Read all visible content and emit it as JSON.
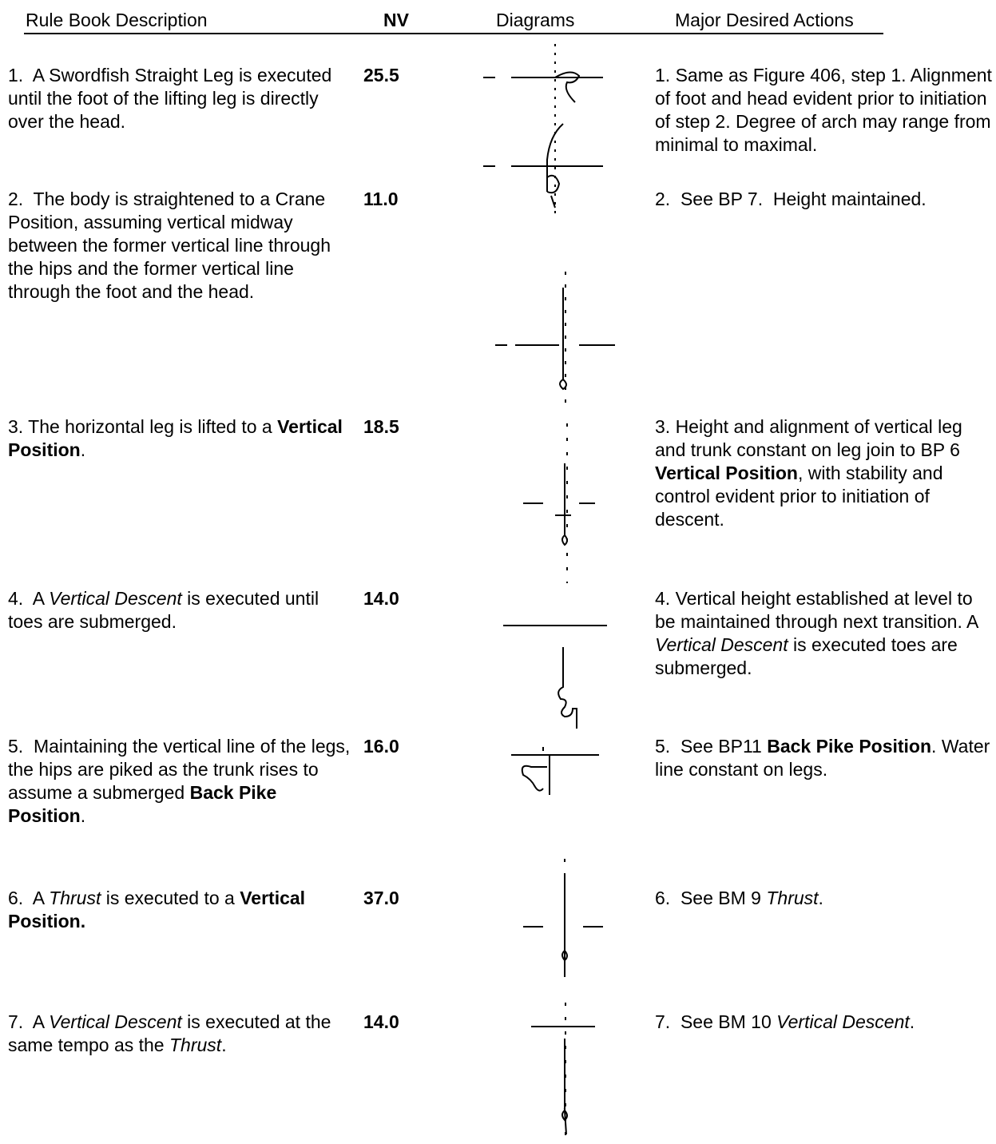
{
  "header": {
    "description": "Rule Book Description",
    "nv": "NV",
    "diagrams": "Diagrams",
    "actions": "Major Desired Actions"
  },
  "rows": [
    {
      "description": [
        "1.  A Swordfish Straight Leg is executed until the foot of the lifting leg is directly over the head."
      ],
      "nv": "25.5",
      "actions": [
        "1. Same as Figure 406, step 1. Alignment of foot and head evident prior to initiation of step 2. Degree of arch may range from minimal to maximal."
      ]
    },
    {
      "description": [
        "2.  The body is straightened to a Crane Position, assuming vertical midway between the former vertical line through the hips and the former vertical line through the foot and the head."
      ],
      "nv": "11.0",
      "actions": [
        "2.  See BP 7.  Height maintained."
      ]
    },
    {
      "description": [
        "3. The horizontal leg is lifted to a ",
        {
          "b": "Vertical Position"
        },
        "."
      ],
      "nv": "18.5",
      "actions": [
        "3. Height and alignment of vertical leg and trunk constant on leg join to BP 6 ",
        {
          "b": "Vertical Position"
        },
        ", with stability and control evident prior to initiation of descent."
      ]
    },
    {
      "description": [
        "4.  A ",
        {
          "i": "Vertical Descent"
        },
        " is executed until toes are submerged."
      ],
      "nv": "14.0",
      "actions": [
        "4. Vertical height established at level to be maintained through next transition. A ",
        {
          "i": "Vertical Descent"
        },
        " is executed toes are submerged."
      ]
    },
    {
      "description": [
        "5.  Maintaining the vertical line of the legs, the hips are piked as the trunk rises to assume a submerged ",
        {
          "b": "Back Pike Position"
        },
        "."
      ],
      "nv": "16.0",
      "actions": [
        "5.  See BP11 ",
        {
          "b": "Back Pike Position"
        },
        ". Water line constant on legs."
      ]
    },
    {
      "description": [
        "6.  A ",
        {
          "i": "Thrust"
        },
        " is executed to a ",
        {
          "b": "Vertical Position."
        }
      ],
      "nv": "37.0",
      "actions": [
        "6.  See BM 9 ",
        {
          "i": "Thrust"
        },
        "."
      ]
    },
    {
      "description": [
        "7.  A ",
        {
          "i": "Vertical Descent"
        },
        " is executed at the same tempo as the ",
        {
          "i": "Thrust"
        },
        "."
      ],
      "nv": "14.0",
      "actions": [
        "7.  See BM 10 ",
        {
          "i": "Vertical Descent"
        },
        "."
      ]
    }
  ]
}
